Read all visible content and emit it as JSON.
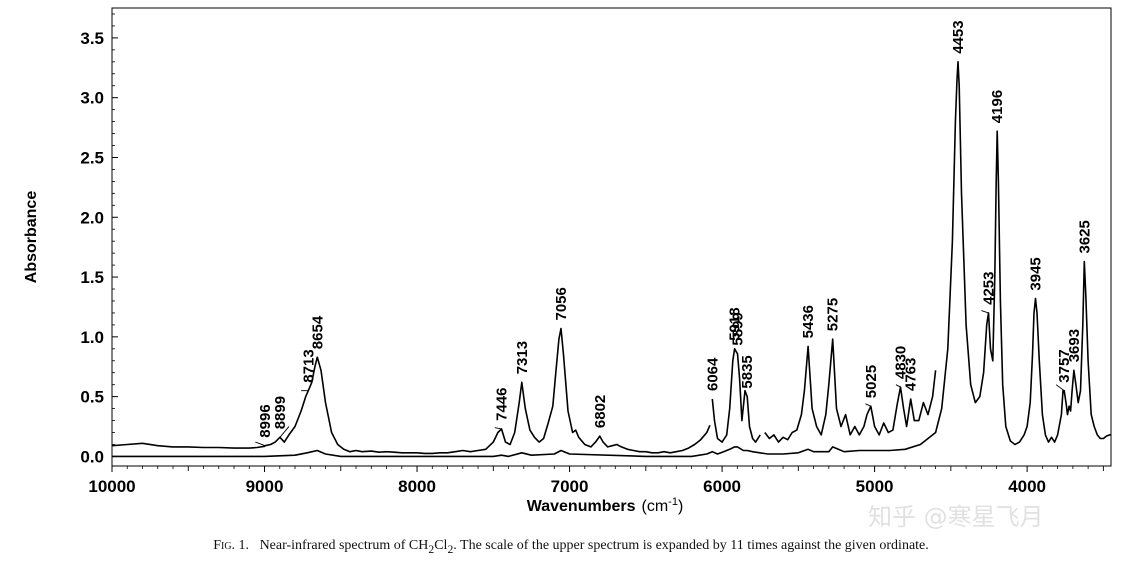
{
  "chart_data": {
    "type": "line",
    "xlabel": "Wavenumbers",
    "xlabel_unit": "(cm",
    "xlabel_unit_sup": "-1",
    "xlabel_unit_close": ")",
    "ylabel": "Absorbance",
    "xlim": [
      10000,
      3450
    ],
    "ylim": [
      -0.08,
      3.75
    ],
    "x_reversed": true,
    "x_ticks": [
      10000,
      9000,
      8000,
      7000,
      6000,
      5000,
      4000
    ],
    "x_tick_labels": [
      "10000",
      "9000",
      "8000",
      "7000",
      "6000",
      "5000",
      "4000"
    ],
    "y_ticks": [
      0.0,
      0.5,
      1.0,
      1.5,
      2.0,
      2.5,
      3.0,
      3.5
    ],
    "y_tick_labels": [
      "0.0",
      "0.5",
      "1.0",
      "1.5",
      "2.0",
      "2.5",
      "3.0",
      "3.5"
    ],
    "grid": false,
    "series": [
      {
        "scale": "expanded x11",
        "x": [
          10000,
          9900,
          9800,
          9700,
          9600,
          9500,
          9400,
          9300,
          9200,
          9100,
          9050,
          9000,
          8996,
          8960,
          8930,
          8899,
          8870,
          8840,
          8800,
          8760,
          8730,
          8713,
          8690,
          8670,
          8654,
          8630,
          8600,
          8560,
          8520,
          8480,
          8440,
          8400,
          8360,
          8300,
          8250,
          8200,
          8150,
          8100,
          8050,
          8000,
          7950,
          7900,
          7850,
          7800,
          7750,
          7700,
          7650,
          7600,
          7550,
          7500,
          7470,
          7446,
          7420,
          7390,
          7360,
          7330,
          7313,
          7290,
          7260,
          7230,
          7200,
          7170,
          7140,
          7110,
          7090,
          7070,
          7056,
          7040,
          7010,
          6980,
          6960,
          6940,
          6900,
          6860,
          6830,
          6802,
          6780,
          6750,
          6720,
          6690,
          6660,
          6620,
          6580,
          6540,
          6500,
          6460,
          6420,
          6380,
          6340,
          6300,
          6260,
          6220,
          6180,
          6140,
          6100,
          6080
        ],
        "y": [
          0.09,
          0.1,
          0.11,
          0.09,
          0.08,
          0.08,
          0.075,
          0.075,
          0.07,
          0.07,
          0.075,
          0.085,
          0.09,
          0.1,
          0.12,
          0.16,
          0.12,
          0.18,
          0.25,
          0.38,
          0.5,
          0.55,
          0.62,
          0.75,
          0.83,
          0.72,
          0.45,
          0.2,
          0.1,
          0.06,
          0.04,
          0.05,
          0.04,
          0.045,
          0.035,
          0.04,
          0.035,
          0.03,
          0.03,
          0.03,
          0.025,
          0.025,
          0.03,
          0.03,
          0.04,
          0.05,
          0.04,
          0.05,
          0.06,
          0.12,
          0.2,
          0.23,
          0.12,
          0.1,
          0.2,
          0.45,
          0.62,
          0.4,
          0.22,
          0.16,
          0.12,
          0.15,
          0.28,
          0.42,
          0.7,
          0.98,
          1.07,
          0.85,
          0.38,
          0.2,
          0.22,
          0.16,
          0.1,
          0.08,
          0.12,
          0.17,
          0.12,
          0.08,
          0.09,
          0.1,
          0.08,
          0.06,
          0.05,
          0.04,
          0.04,
          0.03,
          0.03,
          0.04,
          0.03,
          0.04,
          0.05,
          0.07,
          0.1,
          0.14,
          0.2,
          0.26
        ]
      },
      {
        "scale": "expanded x11",
        "x": [
          6064,
          6050,
          6030,
          6000,
          5970,
          5950,
          5930,
          5918,
          5905,
          5899,
          5885,
          5870,
          5850,
          5835,
          5820,
          5800,
          5780,
          5750
        ],
        "y": [
          0.48,
          0.3,
          0.15,
          0.12,
          0.18,
          0.4,
          0.8,
          0.9,
          0.87,
          0.86,
          0.65,
          0.3,
          0.55,
          0.5,
          0.25,
          0.15,
          0.12,
          0.18
        ]
      },
      {
        "scale": "expanded x11",
        "x": [
          5720,
          5690,
          5660,
          5630,
          5600,
          5570,
          5540,
          5510,
          5480,
          5460,
          5436,
          5410,
          5380,
          5350,
          5320,
          5300,
          5275,
          5250,
          5220,
          5190,
          5160,
          5130,
          5100,
          5070,
          5050,
          5025,
          5000,
          4970,
          4940,
          4910,
          4880,
          4850,
          4830,
          4810,
          4790,
          4763,
          4740,
          4710,
          4680,
          4650,
          4620,
          4600
        ],
        "y": [
          0.2,
          0.15,
          0.18,
          0.12,
          0.16,
          0.14,
          0.2,
          0.22,
          0.35,
          0.55,
          0.92,
          0.4,
          0.25,
          0.18,
          0.35,
          0.6,
          0.98,
          0.4,
          0.25,
          0.35,
          0.18,
          0.25,
          0.18,
          0.25,
          0.35,
          0.42,
          0.25,
          0.18,
          0.28,
          0.2,
          0.22,
          0.45,
          0.58,
          0.4,
          0.25,
          0.48,
          0.3,
          0.3,
          0.45,
          0.35,
          0.5,
          0.72
        ]
      },
      {
        "scale": "actual",
        "x": [
          10000,
          9500,
          9000,
          8800,
          8720,
          8654,
          8600,
          8500,
          8000,
          7500,
          7446,
          7400,
          7313,
          7250,
          7100,
          7056,
          7000,
          6500,
          6200,
          6100,
          6064,
          6030,
          5990,
          5950,
          5918,
          5899,
          5860,
          5835,
          5800,
          5700,
          5600,
          5500,
          5436,
          5400,
          5300,
          5275,
          5200,
          5100,
          5000,
          4900,
          4800,
          4700,
          4600,
          4560,
          4520,
          4490,
          4470,
          4460,
          4453,
          4445,
          4430,
          4400,
          4370,
          4340,
          4310,
          4285,
          4265,
          4253,
          4240,
          4225,
          4212,
          4203,
          4196,
          4188,
          4175,
          4160,
          4140,
          4110,
          4080,
          4050,
          4020,
          4000,
          3980,
          3965,
          3955,
          3945,
          3935,
          3920,
          3900,
          3880,
          3860,
          3840,
          3820,
          3800,
          3775,
          3765,
          3757,
          3745,
          3735,
          3725,
          3715,
          3705,
          3693,
          3680,
          3665,
          3650,
          3635,
          3625,
          3615,
          3600,
          3580,
          3560,
          3540,
          3520,
          3500,
          3480,
          3460,
          3450
        ],
        "y": [
          0.0,
          0.0,
          0.0,
          0.01,
          0.03,
          0.05,
          0.02,
          0.0,
          0.0,
          0.0,
          0.01,
          0.0,
          0.03,
          0.01,
          0.02,
          0.05,
          0.02,
          0.0,
          0.0,
          0.02,
          0.04,
          0.02,
          0.04,
          0.06,
          0.08,
          0.08,
          0.05,
          0.05,
          0.04,
          0.02,
          0.02,
          0.03,
          0.06,
          0.04,
          0.04,
          0.08,
          0.04,
          0.05,
          0.05,
          0.05,
          0.06,
          0.1,
          0.2,
          0.4,
          0.9,
          1.8,
          2.8,
          3.15,
          3.3,
          3.1,
          2.2,
          1.1,
          0.6,
          0.45,
          0.5,
          0.7,
          1.1,
          1.2,
          0.9,
          0.8,
          1.5,
          2.3,
          2.72,
          2.3,
          1.3,
          0.6,
          0.25,
          0.13,
          0.1,
          0.12,
          0.18,
          0.25,
          0.45,
          0.85,
          1.2,
          1.32,
          1.2,
          0.8,
          0.35,
          0.18,
          0.12,
          0.16,
          0.12,
          0.18,
          0.35,
          0.55,
          0.55,
          0.45,
          0.35,
          0.42,
          0.38,
          0.55,
          0.72,
          0.6,
          0.45,
          0.55,
          1.1,
          1.63,
          1.35,
          0.8,
          0.35,
          0.25,
          0.18,
          0.15,
          0.15,
          0.17,
          0.18,
          0.18
        ]
      }
    ],
    "peak_labels": [
      {
        "text": "8996",
        "x": 8996,
        "y": 0.09,
        "leader": [
          9060,
          0.12
        ]
      },
      {
        "text": "8899",
        "x": 8899,
        "y": 0.16,
        "leader": [
          8840,
          0.25
        ]
      },
      {
        "text": "8713",
        "x": 8713,
        "y": 0.55,
        "leader": [
          8760,
          0.55
        ]
      },
      {
        "text": "8654",
        "x": 8654,
        "y": 0.83,
        "leader": null
      },
      {
        "text": "7446",
        "x": 7446,
        "y": 0.23,
        "leader": [
          7490,
          0.24
        ]
      },
      {
        "text": "7313",
        "x": 7313,
        "y": 0.62,
        "leader": null
      },
      {
        "text": "7056",
        "x": 7056,
        "y": 1.07,
        "leader": null
      },
      {
        "text": "6802",
        "x": 6802,
        "y": 0.17,
        "leader": null
      },
      {
        "text": "6064",
        "x": 6064,
        "y": 0.48,
        "leader": null
      },
      {
        "text": "5918",
        "x": 5918,
        "y": 0.9,
        "leader": null
      },
      {
        "text": "5899",
        "x": 5899,
        "y": 0.86,
        "leader": null
      },
      {
        "text": "5835",
        "x": 5835,
        "y": 0.5,
        "leader": null
      },
      {
        "text": "5436",
        "x": 5436,
        "y": 0.92,
        "leader": null
      },
      {
        "text": "5275",
        "x": 5275,
        "y": 0.98,
        "leader": null
      },
      {
        "text": "5025",
        "x": 5025,
        "y": 0.42,
        "leader": [
          5060,
          0.44
        ]
      },
      {
        "text": "4830",
        "x": 4830,
        "y": 0.58,
        "leader": [
          4860,
          0.6
        ]
      },
      {
        "text": "4763",
        "x": 4763,
        "y": 0.48,
        "leader": null
      },
      {
        "text": "4453",
        "x": 4453,
        "y": 3.3,
        "leader": null
      },
      {
        "text": "4253",
        "x": 4253,
        "y": 1.2,
        "leader": [
          4300,
          1.22
        ]
      },
      {
        "text": "4196",
        "x": 4196,
        "y": 2.72,
        "leader": null
      },
      {
        "text": "3945",
        "x": 3945,
        "y": 1.32,
        "leader": null
      },
      {
        "text": "3757",
        "x": 3757,
        "y": 0.55,
        "leader": [
          3810,
          0.6
        ]
      },
      {
        "text": "3693",
        "x": 3693,
        "y": 0.72,
        "leader": null
      },
      {
        "text": "3625",
        "x": 3625,
        "y": 1.63,
        "leader": null
      }
    ]
  },
  "caption": {
    "fig_label": "Fig. 1.",
    "text_before": "Near-infrared spectrum of CH",
    "sub1": "2",
    "text_mid": "Cl",
    "sub2": "2",
    "text_after": ". The scale of the upper spectrum is expanded by 11 times against the given ordinate."
  },
  "watermark": "知乎 @寒星飞月"
}
